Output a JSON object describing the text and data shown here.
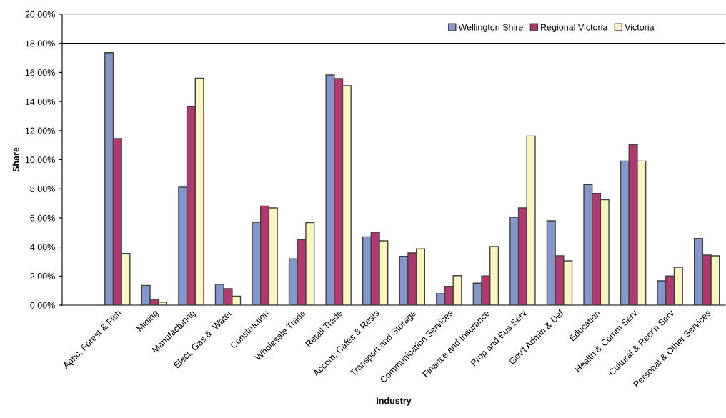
{
  "chart_data": {
    "type": "bar",
    "xlabel": "Industry",
    "ylabel": "Share",
    "categories": [
      null,
      "Agric, Forest & Fish",
      "Mining",
      "Manufacturing",
      "Elect, Gas &  Water",
      "Construction",
      "Wholesale Trade",
      "Retail Trade",
      "Accom, Cafes & Rests",
      "Transport and Storage",
      "Communication Services",
      "Finance and Insurance",
      "Prop and Bus Serv",
      "Gov't Admin & Def",
      "Education",
      "Health & Comm Serv",
      "Cultural & Recr'n Serv",
      "Personal & Other Services"
    ],
    "series": [
      {
        "name": "Wellington Shire",
        "color": "#8497c8",
        "values": [
          null,
          17.36,
          1.36,
          8.11,
          1.43,
          5.7,
          3.19,
          15.82,
          4.7,
          3.36,
          0.79,
          1.51,
          6.04,
          5.8,
          8.29,
          9.91,
          1.67,
          4.59
        ]
      },
      {
        "name": "Regional Victoria",
        "color": "#b03a6e",
        "values": [
          null,
          11.45,
          0.39,
          13.64,
          1.13,
          6.81,
          4.49,
          15.58,
          5.01,
          3.59,
          1.29,
          2.01,
          6.68,
          3.39,
          7.68,
          11.04,
          2.0,
          3.44
        ]
      },
      {
        "name": "Victoria",
        "color": "#faf5c3",
        "values": [
          null,
          3.55,
          0.2,
          15.61,
          0.62,
          6.68,
          5.67,
          15.09,
          4.42,
          3.87,
          2.03,
          4.03,
          11.63,
          3.05,
          7.24,
          9.91,
          2.6,
          3.39
        ]
      }
    ],
    "ylim": [
      0,
      20
    ],
    "yticks": [
      {
        "value": 0,
        "label": "0.00%"
      },
      {
        "value": 2,
        "label": "2.00%"
      },
      {
        "value": 4,
        "label": "4.00%"
      },
      {
        "value": 6,
        "label": "6.00%"
      },
      {
        "value": 8,
        "label": "8.00%"
      },
      {
        "value": 10,
        "label": "10.00%"
      },
      {
        "value": 12,
        "label": "12.00%"
      },
      {
        "value": 14,
        "label": "14.00%"
      },
      {
        "value": 16,
        "label": "16.00%"
      },
      {
        "value": 18,
        "label": "18.00%"
      },
      {
        "value": 20,
        "label": "20.00%"
      }
    ],
    "ref_lines": [
      {
        "axis": "y",
        "value": 18,
        "color": "#000000"
      }
    ],
    "legend": "top right"
  }
}
